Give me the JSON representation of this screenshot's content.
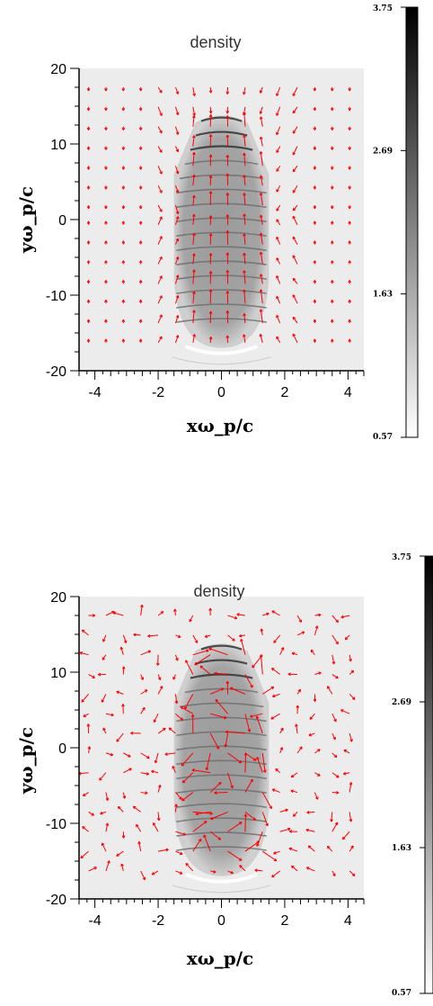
{
  "chart_data": [
    {
      "type": "heatmap",
      "title": "density",
      "xlabel": "xω_p/c",
      "ylabel": "yω_p/c",
      "xlim": [
        -4.5,
        4.5
      ],
      "ylim": [
        -20,
        20
      ],
      "x_ticks": [
        "-4",
        "-2",
        "0",
        "2",
        "4"
      ],
      "y_ticks": [
        "20",
        "10",
        "0",
        "-10",
        "-20"
      ],
      "colorbar": {
        "min": 0.57,
        "max": 3.75,
        "tick_labels": [
          "3.75",
          "2.69",
          "1.63",
          "0.57"
        ]
      },
      "colormap": [
        "#ffffff",
        "#000000"
      ],
      "arrow_color": "#ff0000",
      "grid": false
    },
    {
      "type": "heatmap",
      "title": "density",
      "xlabel": "xω_p/c",
      "ylabel": "yω_p/c",
      "xlim": [
        -4.5,
        4.5
      ],
      "ylim": [
        -20,
        20
      ],
      "x_ticks": [
        "-4",
        "-2",
        "0",
        "2",
        "4"
      ],
      "y_ticks": [
        "20",
        "10",
        "0",
        "-10",
        "-20"
      ],
      "colorbar": {
        "min": 0.57,
        "max": 3.75,
        "tick_labels": [
          "3.75",
          "2.69",
          "1.63",
          "0.57"
        ]
      },
      "colormap": [
        "#ffffff",
        "#000000"
      ],
      "arrow_color": "#ff0000",
      "grid": false
    }
  ]
}
